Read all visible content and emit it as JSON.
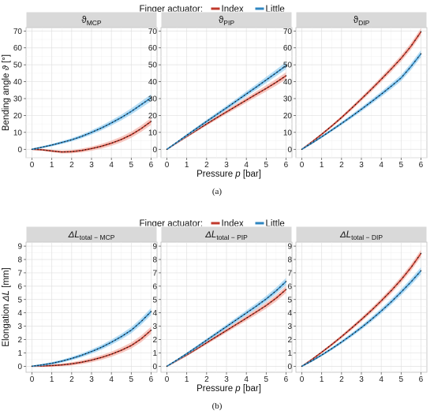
{
  "legend": {
    "title": "Finger actuator:",
    "entries": [
      {
        "label": "Index",
        "color": "#c0392b"
      },
      {
        "label": "Little",
        "color": "#2e86c1"
      }
    ]
  },
  "caption_a": "(a)",
  "caption_b": "(b)",
  "colors": {
    "index_band": "#f4b6ac",
    "little_band": "#9fd3f2",
    "points": "#111111",
    "strip": "#d9d9d9"
  },
  "chart_data": [
    {
      "type": "line",
      "caption": "(a)",
      "xlabel_prefix": "Pressure ",
      "xlabel_var": "p",
      "xlabel_unit": " [bar]",
      "ylabel_prefix": "Bending angle ",
      "ylabel_var": "ϑ",
      "ylabel_unit": " [°]",
      "xlim": [
        -0.3,
        6.3
      ],
      "ylim": [
        -5,
        72
      ],
      "xticks": [
        "0",
        "1",
        "2",
        "3",
        "4",
        "5",
        "6"
      ],
      "yticks": [
        "0",
        "10",
        "20",
        "30",
        "40",
        "50",
        "60",
        "70"
      ],
      "grid": true,
      "legend_position": "top",
      "panels": [
        {
          "title_main": "ϑ",
          "title_sub": "MCP",
          "series": [
            {
              "name": "Index",
              "x": [
                0,
                0.5,
                1,
                1.5,
                2,
                2.5,
                3,
                3.5,
                4,
                4.5,
                5,
                5.5,
                6
              ],
              "y": [
                0,
                -0.3,
                -1,
                -1.6,
                -1.4,
                -0.7,
                0.4,
                1.8,
                3.6,
                5.8,
                8.6,
                12.2,
                16.5
              ]
            },
            {
              "name": "Little",
              "x": [
                0,
                0.5,
                1,
                1.5,
                2,
                2.5,
                3,
                3.5,
                4,
                4.5,
                5,
                5.5,
                6
              ],
              "y": [
                0,
                1.2,
                2.5,
                4,
                5.6,
                7.6,
                10,
                12.6,
                15.6,
                18.8,
                22.4,
                26.4,
                30.5
              ]
            }
          ]
        },
        {
          "title_main": "ϑ",
          "title_sub": "PIP",
          "series": [
            {
              "name": "Index",
              "x": [
                0,
                0.5,
                1,
                1.5,
                2,
                2.5,
                3,
                3.5,
                4,
                4.5,
                5,
                5.5,
                6
              ],
              "y": [
                0,
                3.8,
                7.6,
                11.3,
                15,
                18.6,
                22.1,
                25.6,
                29.1,
                32.6,
                36,
                39.6,
                43.5
              ]
            },
            {
              "name": "Little",
              "x": [
                0,
                0.5,
                1,
                1.5,
                2,
                2.5,
                3,
                3.5,
                4,
                4.5,
                5,
                5.5,
                6
              ],
              "y": [
                0,
                4.1,
                8.3,
                12.4,
                16.5,
                20.5,
                24.5,
                28.6,
                32.7,
                36.8,
                41,
                45.2,
                49.5
              ]
            }
          ]
        },
        {
          "title_main": "ϑ",
          "title_sub": "DIP",
          "series": [
            {
              "name": "Index",
              "x": [
                0,
                0.5,
                1,
                1.5,
                2,
                2.5,
                3,
                3.5,
                4,
                4.5,
                5,
                5.5,
                6
              ],
              "y": [
                0,
                4.3,
                8.9,
                13.7,
                18.8,
                24.2,
                29.8,
                35.5,
                41.4,
                47.5,
                53.8,
                61,
                69.5
              ]
            },
            {
              "name": "Little",
              "x": [
                0,
                0.5,
                1,
                1.5,
                2,
                2.5,
                3,
                3.5,
                4,
                4.5,
                5,
                5.5,
                6
              ],
              "y": [
                0,
                3.6,
                7.4,
                11.3,
                15.3,
                19.4,
                23.7,
                28.1,
                32.6,
                37.3,
                42.2,
                49,
                56.5
              ]
            }
          ]
        }
      ]
    },
    {
      "type": "line",
      "caption": "(b)",
      "xlabel_prefix": "Pressure ",
      "xlabel_var": "p",
      "xlabel_unit": " [bar]",
      "ylabel_prefix": "Elongation ",
      "ylabel_var": "ΔL",
      "ylabel_unit": " [mm]",
      "xlim": [
        -0.3,
        6.3
      ],
      "ylim": [
        -0.45,
        9.3
      ],
      "xticks": [
        "0",
        "1",
        "2",
        "3",
        "4",
        "5",
        "6"
      ],
      "yticks": [
        "0",
        "1",
        "2",
        "3",
        "4",
        "5",
        "6",
        "7",
        "8",
        "9"
      ],
      "grid": true,
      "legend_position": "top",
      "panels": [
        {
          "title_main": "ΔL",
          "title_sub": "total − MCP",
          "series": [
            {
              "name": "Index",
              "x": [
                0,
                0.5,
                1,
                1.5,
                2,
                2.5,
                3,
                3.5,
                4,
                4.5,
                5,
                5.5,
                6
              ],
              "y": [
                0,
                0.02,
                0.05,
                0.1,
                0.18,
                0.3,
                0.46,
                0.66,
                0.9,
                1.2,
                1.55,
                2.05,
                2.7
              ]
            },
            {
              "name": "Little",
              "x": [
                0,
                0.5,
                1,
                1.5,
                2,
                2.5,
                3,
                3.5,
                4,
                4.5,
                5,
                5.5,
                6
              ],
              "y": [
                0,
                0.1,
                0.22,
                0.38,
                0.58,
                0.82,
                1.1,
                1.42,
                1.8,
                2.22,
                2.7,
                3.35,
                4.1
              ]
            }
          ]
        },
        {
          "title_main": "ΔL",
          "title_sub": "total − PIP",
          "series": [
            {
              "name": "Index",
              "x": [
                0,
                0.5,
                1,
                1.5,
                2,
                2.5,
                3,
                3.5,
                4,
                4.5,
                5,
                5.5,
                6
              ],
              "y": [
                0,
                0.42,
                0.85,
                1.3,
                1.76,
                2.22,
                2.68,
                3.14,
                3.6,
                4.07,
                4.55,
                5.1,
                5.75
              ]
            },
            {
              "name": "Little",
              "x": [
                0,
                0.5,
                1,
                1.5,
                2,
                2.5,
                3,
                3.5,
                4,
                4.5,
                5,
                5.5,
                6
              ],
              "y": [
                0,
                0.46,
                0.94,
                1.44,
                1.95,
                2.46,
                2.97,
                3.48,
                3.99,
                4.5,
                5.04,
                5.65,
                6.35
              ]
            }
          ]
        },
        {
          "title_main": "ΔL",
          "title_sub": "total − DIP",
          "series": [
            {
              "name": "Index",
              "x": [
                0,
                0.5,
                1,
                1.5,
                2,
                2.5,
                3,
                3.5,
                4,
                4.5,
                5,
                5.5,
                6
              ],
              "y": [
                0,
                0.5,
                1.05,
                1.62,
                2.22,
                2.85,
                3.5,
                4.18,
                4.9,
                5.66,
                6.48,
                7.4,
                8.45
              ]
            },
            {
              "name": "Little",
              "x": [
                0,
                0.5,
                1,
                1.5,
                2,
                2.5,
                3,
                3.5,
                4,
                4.5,
                5,
                5.5,
                6
              ],
              "y": [
                0,
                0.4,
                0.84,
                1.31,
                1.81,
                2.34,
                2.9,
                3.5,
                4.14,
                4.82,
                5.55,
                6.32,
                7.15
              ]
            }
          ]
        }
      ]
    }
  ]
}
